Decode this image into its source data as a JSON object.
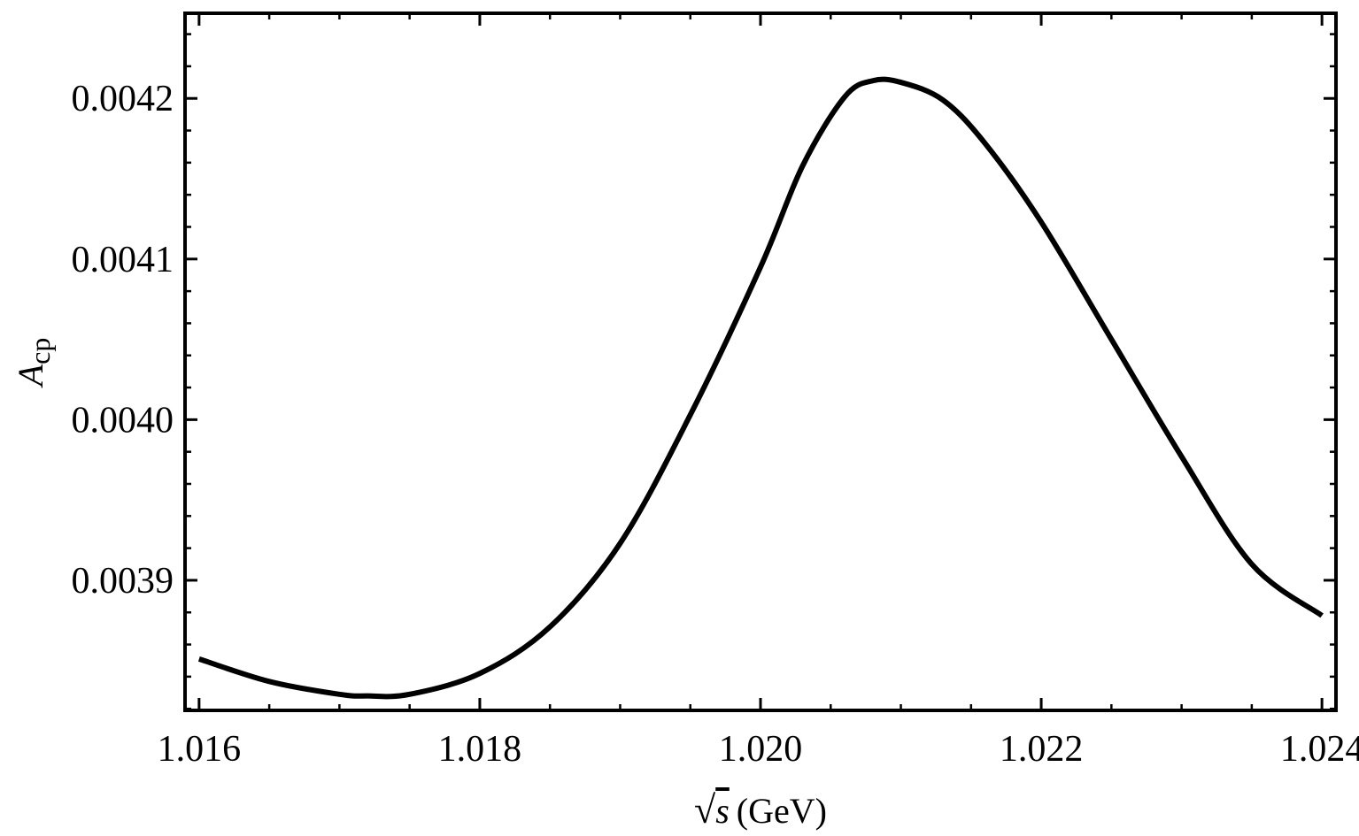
{
  "chart_data": {
    "type": "line",
    "title": "",
    "xlabel": {
      "sqrt_symbol": "√",
      "variable": "s",
      "unit": "(GeV)"
    },
    "ylabel": {
      "symbol": "A",
      "subscript": "cp"
    },
    "xlim": [
      1.0159,
      1.0241
    ],
    "ylim": [
      0.003819,
      0.004253
    ],
    "xticks": [
      {
        "value": 1.016,
        "label": "1.016"
      },
      {
        "value": 1.018,
        "label": "1.018"
      },
      {
        "value": 1.02,
        "label": "1.020"
      },
      {
        "value": 1.022,
        "label": "1.022"
      },
      {
        "value": 1.024,
        "label": "1.024"
      }
    ],
    "yticks": [
      {
        "value": 0.0039,
        "label": "0.0039"
      },
      {
        "value": 0.004,
        "label": "0.0040"
      },
      {
        "value": 0.0041,
        "label": "0.0041"
      },
      {
        "value": 0.0042,
        "label": "0.0042"
      }
    ],
    "x_minor_step": 0.0005,
    "y_minor_step": 2e-05,
    "grid": false,
    "legend": "none",
    "line_color": "#000000",
    "series": [
      {
        "x": [
          1.016,
          1.0165,
          1.017,
          1.0172,
          1.0175,
          1.018,
          1.0185,
          1.019,
          1.0195,
          1.02,
          1.0203,
          1.0206,
          1.0208,
          1.021,
          1.0213,
          1.0216,
          1.022,
          1.0225,
          1.023,
          1.0235,
          1.024
        ],
        "y": [
          0.003851,
          0.003837,
          0.003829,
          0.003828,
          0.003829,
          0.003842,
          0.003871,
          0.003923,
          0.004003,
          0.004095,
          0.004158,
          0.004201,
          0.004211,
          0.00421,
          0.004199,
          0.004172,
          0.004123,
          0.00405,
          0.003977,
          0.00391,
          0.003878
        ]
      }
    ]
  }
}
